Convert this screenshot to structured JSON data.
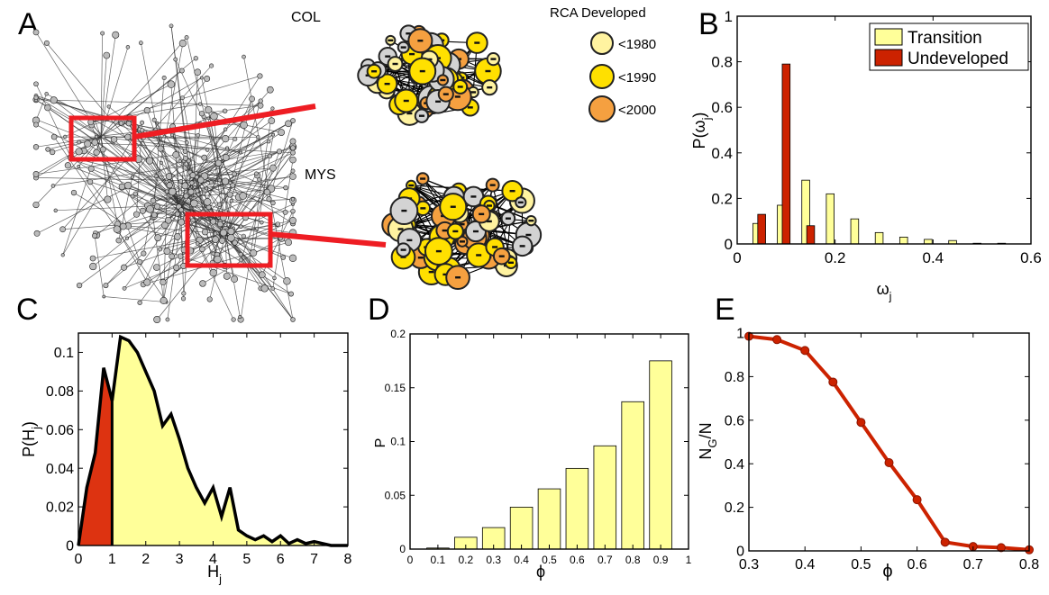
{
  "panel_letters": [
    "A",
    "B",
    "C",
    "D",
    "E"
  ],
  "network": {
    "col_label": "COL",
    "mys_label": "MYS",
    "legend_title": "RCA Developed",
    "legend_items": [
      {
        "label": "<1980",
        "color": "#fff3a0"
      },
      {
        "label": "<1990",
        "color": "#ffe000"
      },
      {
        "label": "<2000",
        "color": "#f5a040"
      }
    ],
    "highlight_color": "#ee1d23",
    "node_grey": "#d3d3d3"
  },
  "chart_data": [
    {
      "panel": "B",
      "type": "bar",
      "xlabel": "ωj",
      "ylabel": "P(ωj)",
      "xlim": [
        0,
        0.6
      ],
      "ylim": [
        0,
        1
      ],
      "xticks": [
        "0",
        "0.2",
        "0.4",
        "0.6"
      ],
      "yticks": [
        "0",
        "0.2",
        "0.4",
        "0.6",
        "0.8",
        "1"
      ],
      "legend_position": "top-right",
      "series": [
        {
          "name": "Transition",
          "color": "#ffff99",
          "x": [
            0.04,
            0.09,
            0.14,
            0.19,
            0.24,
            0.29,
            0.34,
            0.39,
            0.44,
            0.49,
            0.54
          ],
          "values": [
            0.09,
            0.17,
            0.28,
            0.22,
            0.11,
            0.05,
            0.03,
            0.02,
            0.015,
            0.003,
            0.003
          ]
        },
        {
          "name": "Undeveloped",
          "color": "#cc2200",
          "x": [
            0.05,
            0.1,
            0.15
          ],
          "values": [
            0.13,
            0.79,
            0.08
          ]
        }
      ]
    },
    {
      "panel": "C",
      "type": "area",
      "xlabel": "Hj",
      "ylabel": "P(Hj)",
      "xlim": [
        0,
        8
      ],
      "ylim": [
        0,
        0.11
      ],
      "xticks": [
        "0",
        "1",
        "2",
        "3",
        "4",
        "5",
        "6",
        "7",
        "8"
      ],
      "yticks": [
        "0",
        "0.02",
        "0.04",
        "0.06",
        "0.08",
        "0.1"
      ],
      "split_x": 1,
      "fill_left": "#dd3311",
      "fill_right": "#ffff99",
      "x": [
        0,
        0.25,
        0.5,
        0.75,
        1.0,
        1.25,
        1.5,
        1.75,
        2.0,
        2.25,
        2.5,
        2.75,
        3.0,
        3.25,
        3.5,
        3.75,
        4.0,
        4.25,
        4.5,
        4.75,
        5.0,
        5.25,
        5.5,
        5.75,
        6.0,
        6.25,
        6.5,
        6.75,
        7.0,
        7.25,
        7.5,
        7.75,
        8.0
      ],
      "values": [
        0.0,
        0.03,
        0.048,
        0.092,
        0.075,
        0.108,
        0.106,
        0.1,
        0.09,
        0.08,
        0.062,
        0.068,
        0.055,
        0.04,
        0.03,
        0.022,
        0.03,
        0.015,
        0.03,
        0.008,
        0.005,
        0.003,
        0.005,
        0.002,
        0.005,
        0.001,
        0.003,
        0.001,
        0.002,
        0.001,
        0.0,
        0.0,
        0.0
      ]
    },
    {
      "panel": "D",
      "type": "bar",
      "xlabel": "ϕ",
      "ylabel": "P",
      "xlim": [
        0,
        1
      ],
      "ylim": [
        0,
        0.2
      ],
      "xticks": [
        "0",
        "0.1",
        "0.2",
        "0.3",
        "0.4",
        "0.5",
        "0.6",
        "0.7",
        "0.8",
        "0.9",
        "1"
      ],
      "yticks": [
        "0",
        "0.05",
        "0.1",
        "0.15",
        "0.2"
      ],
      "color": "#ffff99",
      "x": [
        0.1,
        0.2,
        0.3,
        0.4,
        0.5,
        0.6,
        0.7,
        0.8,
        0.9
      ],
      "values": [
        0.001,
        0.011,
        0.02,
        0.039,
        0.056,
        0.075,
        0.096,
        0.137,
        0.175
      ]
    },
    {
      "panel": "E",
      "type": "line",
      "xlabel": "ϕ",
      "ylabel": "NG/N",
      "xlim": [
        0.3,
        0.8
      ],
      "ylim": [
        0,
        1
      ],
      "xticks": [
        "0.3",
        "0.4",
        "0.5",
        "0.6",
        "0.7",
        "0.8"
      ],
      "yticks": [
        "0",
        "0.2",
        "0.4",
        "0.6",
        "0.8",
        "1"
      ],
      "color": "#cc2200",
      "x": [
        0.3,
        0.35,
        0.4,
        0.45,
        0.5,
        0.55,
        0.6,
        0.65,
        0.7,
        0.75,
        0.8
      ],
      "values": [
        0.985,
        0.97,
        0.92,
        0.775,
        0.59,
        0.405,
        0.235,
        0.04,
        0.02,
        0.015,
        0.005
      ]
    }
  ]
}
